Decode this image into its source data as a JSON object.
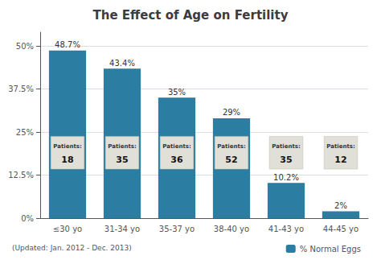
{
  "chart_data": {
    "type": "bar",
    "title": "The Effect of Age on Fertility",
    "categories": [
      "≤30 yo",
      "31-34 yo",
      "35-37 yo",
      "38-40 yo",
      "41-43 yo",
      "44-45 yo"
    ],
    "series": [
      {
        "name": "% Normal Eggs",
        "color": "#2b7ea1",
        "values": [
          48.7,
          43.4,
          35.0,
          29.0,
          10.2,
          2.0
        ],
        "value_labels": [
          "48.7%",
          "43.4%",
          "35%",
          "29%",
          "10.2%",
          "2%"
        ]
      }
    ],
    "patients_label": "Patients:",
    "patients": [
      18,
      35,
      36,
      52,
      35,
      12
    ],
    "note": "(Updated: Jan. 2012 - Dec. 2013)",
    "ylim": [
      0,
      54
    ],
    "yticks": [
      {
        "value": 0,
        "label": "0%"
      },
      {
        "value": 12.5,
        "label": "12.5%"
      },
      {
        "value": 25.0,
        "label": "25%"
      },
      {
        "value": 37.5,
        "label": "37.5%"
      },
      {
        "value": 50.0,
        "label": "50%"
      }
    ],
    "grid": true,
    "legend": "lower right",
    "data_labels": true
  }
}
